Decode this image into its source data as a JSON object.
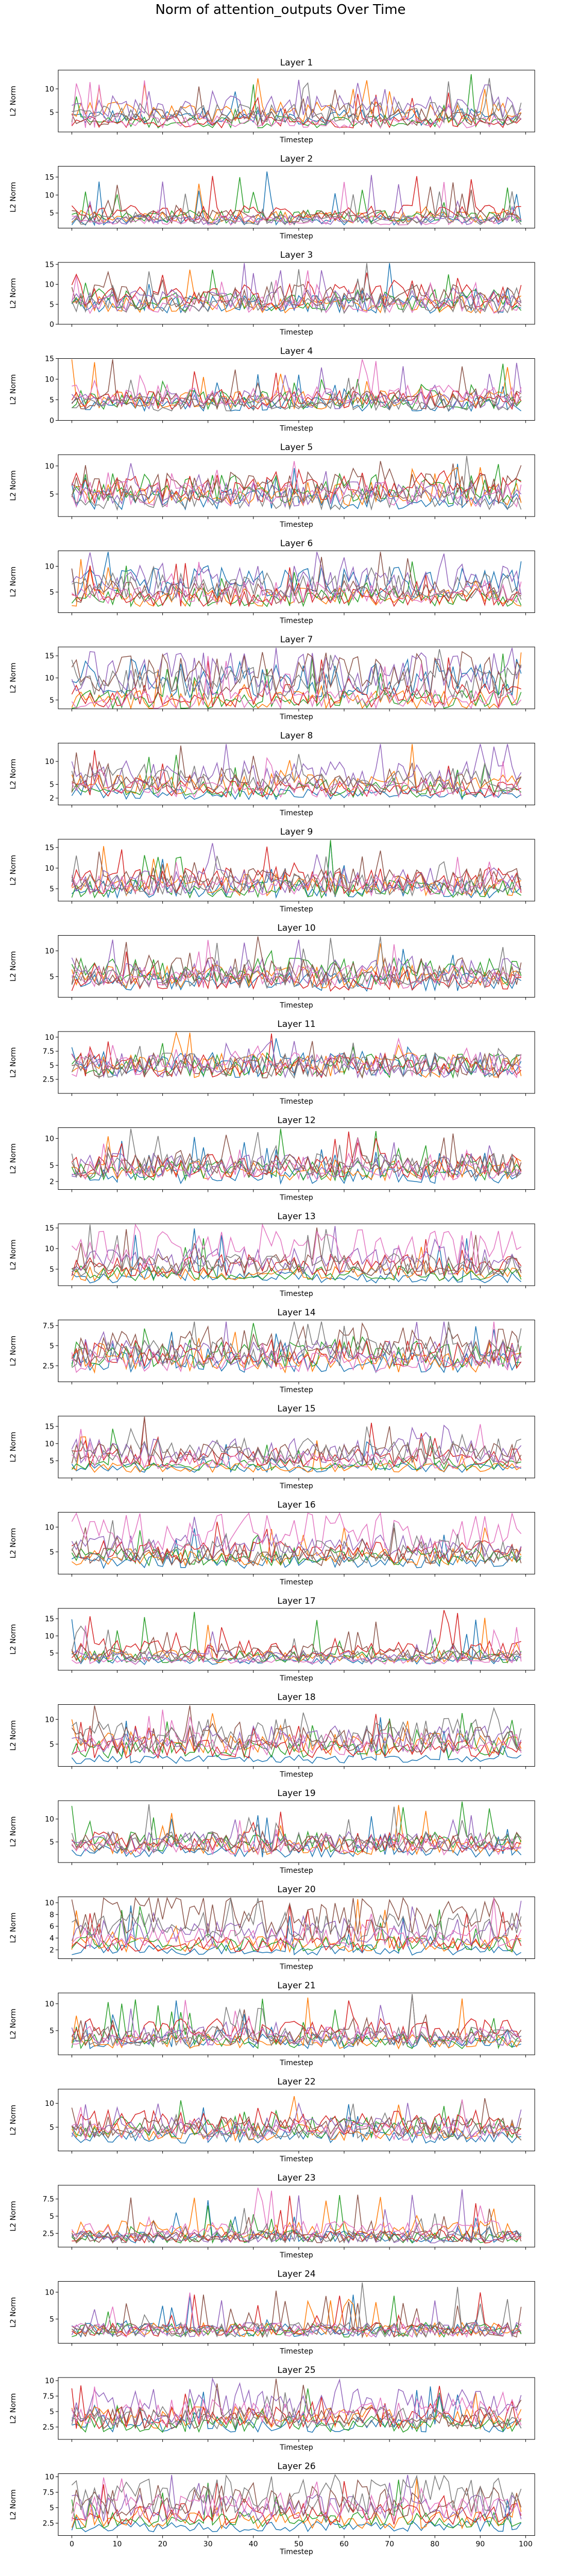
{
  "figure": {
    "title": "Norm of attention_outputs Over Time"
  },
  "chart_data": {
    "type": "line",
    "title": "Norm of attention_outputs Over Time",
    "xlabel": "Timestep",
    "ylabel": "L2 Norm",
    "xlim": [
      -3,
      102
    ],
    "x_ticks": [
      0,
      10,
      20,
      30,
      40,
      50,
      60,
      70,
      80,
      90,
      100
    ],
    "x_tick_labels_shown_on": "Layer 26",
    "series_colors": [
      "#1f77b4",
      "#ff7f0e",
      "#2ca02c",
      "#d62728",
      "#9467bd",
      "#8c564b",
      "#e377c2",
      "#7f7f7f"
    ],
    "grid": false,
    "legend": "none",
    "note_values": "per-timestep values are random-looking fluctuations; each layer is summarized by its y-range and per-series level",
    "panels": [
      {
        "title": "Layer 1",
        "ylim": [
          0.8,
          14
        ],
        "yticks": [
          5,
          10
        ],
        "series_levels": [
          4,
          5,
          3,
          3,
          6,
          4,
          3,
          5
        ]
      },
      {
        "title": "Layer 2",
        "ylim": [
          0.8,
          18
        ],
        "yticks": [
          5,
          10,
          15
        ],
        "series_levels": [
          3,
          4,
          4,
          5,
          3,
          4,
          3,
          3
        ]
      },
      {
        "title": "Layer 3",
        "ylim": [
          0,
          15.5
        ],
        "yticks": [
          0,
          5,
          10,
          15
        ],
        "series_levels": [
          5,
          5,
          6,
          7,
          6,
          7,
          5,
          5
        ]
      },
      {
        "title": "Layer 4",
        "ylim": [
          0,
          15
        ],
        "yticks": [
          0,
          5,
          10,
          15
        ],
        "series_levels": [
          4,
          5,
          5,
          5,
          5,
          5,
          6,
          4
        ]
      },
      {
        "title": "Layer 5",
        "ylim": [
          1,
          12
        ],
        "yticks": [
          5,
          10
        ],
        "series_levels": [
          4,
          5,
          6,
          6,
          5,
          6,
          5,
          4
        ]
      },
      {
        "title": "Layer 6",
        "ylim": [
          1,
          13
        ],
        "yticks": [
          5,
          10
        ],
        "series_levels": [
          7,
          4,
          4,
          4,
          7,
          5,
          5,
          6
        ]
      },
      {
        "title": "Layer 7",
        "ylim": [
          3,
          17
        ],
        "yticks": [
          5,
          10,
          15
        ],
        "series_levels": [
          10,
          5,
          5,
          6,
          11,
          11,
          5,
          9
        ]
      },
      {
        "title": "Layer 8",
        "ylim": [
          0.5,
          14
        ],
        "yticks": [
          2,
          5,
          10
        ],
        "series_levels": [
          3,
          5,
          4,
          4,
          7,
          5,
          4,
          6
        ]
      },
      {
        "title": "Layer 9",
        "ylim": [
          2,
          17
        ],
        "yticks": [
          5,
          10,
          15
        ],
        "series_levels": [
          5,
          6,
          5,
          7,
          7,
          7,
          6,
          6
        ]
      },
      {
        "title": "Layer 10",
        "ylim": [
          1,
          13
        ],
        "yticks": [
          5,
          10
        ],
        "series_levels": [
          4,
          5,
          6,
          4,
          6,
          6,
          5,
          5
        ]
      },
      {
        "title": "Layer 11",
        "ylim": [
          0,
          11
        ],
        "yticks": [
          2.5,
          5.0,
          7.5,
          10.0
        ],
        "series_levels": [
          5,
          5,
          5,
          5,
          5,
          5,
          5,
          5
        ]
      },
      {
        "title": "Layer 12",
        "ylim": [
          0.5,
          12
        ],
        "yticks": [
          2,
          5,
          10
        ],
        "series_levels": [
          3,
          4,
          4,
          5,
          5,
          5,
          4,
          5
        ]
      },
      {
        "title": "Layer 13",
        "ylim": [
          1,
          16
        ],
        "yticks": [
          5,
          10,
          15
        ],
        "series_levels": [
          3,
          4,
          4,
          6,
          7,
          6,
          10,
          6
        ]
      },
      {
        "title": "Layer 14",
        "ylim": [
          0.5,
          8.2
        ],
        "yticks": [
          2.5,
          5.0,
          7.5
        ],
        "series_levels": [
          3,
          3,
          4,
          4,
          4,
          5,
          3,
          4
        ]
      },
      {
        "title": "Layer 15",
        "ylim": [
          0,
          18
        ],
        "yticks": [
          5,
          10,
          15
        ],
        "series_levels": [
          3,
          3,
          4,
          6,
          8,
          7,
          5,
          8
        ]
      },
      {
        "title": "Layer 16",
        "ylim": [
          0.5,
          13
        ],
        "yticks": [
          5,
          10
        ],
        "series_levels": [
          3,
          4,
          4,
          5,
          6,
          4,
          9,
          5
        ]
      },
      {
        "title": "Layer 17",
        "ylim": [
          0,
          18
        ],
        "yticks": [
          5,
          10,
          15
        ],
        "series_levels": [
          3,
          4,
          4,
          6,
          4,
          5,
          3,
          4
        ]
      },
      {
        "title": "Layer 18",
        "ylim": [
          0.5,
          13
        ],
        "yticks": [
          5,
          10
        ],
        "series_levels": [
          2,
          5,
          4,
          4,
          6,
          6,
          5,
          7
        ]
      },
      {
        "title": "Layer 19",
        "ylim": [
          0.5,
          14
        ],
        "yticks": [
          5,
          10
        ],
        "series_levels": [
          3,
          4,
          5,
          5,
          5,
          5,
          4,
          5
        ]
      },
      {
        "title": "Layer 20",
        "ylim": [
          0.5,
          11
        ],
        "yticks": [
          2,
          4,
          6,
          8,
          10
        ],
        "series_levels": [
          2,
          3,
          3,
          3,
          5,
          8,
          4,
          6
        ]
      },
      {
        "title": "Layer 21",
        "ylim": [
          0.5,
          12
        ],
        "yticks": [
          5,
          10
        ],
        "series_levels": [
          3,
          3,
          3,
          5,
          4,
          4,
          4,
          4
        ]
      },
      {
        "title": "Layer 22",
        "ylim": [
          0,
          13
        ],
        "yticks": [
          5,
          10
        ],
        "series_levels": [
          3,
          4,
          5,
          6,
          5,
          5,
          4,
          4
        ]
      },
      {
        "title": "Layer 23",
        "ylim": [
          0.5,
          9.5
        ],
        "yticks": [
          2.5,
          5.0,
          7.5
        ],
        "series_levels": [
          2,
          3,
          2,
          2,
          2,
          2,
          3,
          2
        ]
      },
      {
        "title": "Layer 24",
        "ylim": [
          0.5,
          12
        ],
        "yticks": [
          5,
          10
        ],
        "series_levels": [
          3,
          3,
          3,
          3,
          3,
          3,
          3,
          3
        ]
      },
      {
        "title": "Layer 25",
        "ylim": [
          0.5,
          10.5
        ],
        "yticks": [
          2.5,
          5.0,
          7.5,
          10.0
        ],
        "series_levels": [
          3,
          4,
          3,
          4,
          6,
          4,
          5,
          4
        ]
      },
      {
        "title": "Layer 26",
        "ylim": [
          0.5,
          10.5
        ],
        "yticks": [
          2.5,
          5.0,
          7.5,
          10.0
        ],
        "series_levels": [
          2,
          3,
          3,
          4,
          5,
          6,
          5,
          7
        ]
      }
    ]
  }
}
